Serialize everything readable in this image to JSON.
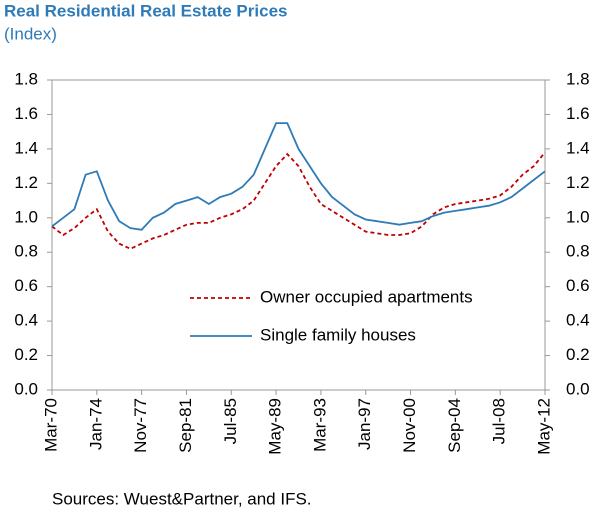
{
  "chart_data": {
    "type": "line",
    "title": "Real Residential Real Estate Prices",
    "subtitle": "(Index)",
    "note": "Sources: Wuest&Partner, and IFS.",
    "categories": [
      "Mar-70",
      null,
      null,
      null,
      "Jan-74",
      null,
      null,
      null,
      "Nov-77",
      null,
      null,
      null,
      "Sep-81",
      null,
      null,
      null,
      "Jul-85",
      null,
      null,
      null,
      "May-89",
      null,
      null,
      null,
      "Mar-93",
      null,
      null,
      null,
      "Jan-97",
      null,
      null,
      null,
      "Nov-00",
      null,
      null,
      null,
      "Sep-04",
      null,
      null,
      null,
      "Jul-08",
      null,
      null,
      null,
      "May-12"
    ],
    "series": [
      {
        "name": "Owner occupied apartments",
        "color": "#c00000",
        "line_style": "dashed",
        "values": [
          0.95,
          0.9,
          0.94,
          1.0,
          1.05,
          0.92,
          0.85,
          0.82,
          0.85,
          0.88,
          0.9,
          0.93,
          0.96,
          0.97,
          0.97,
          1.0,
          1.02,
          1.05,
          1.1,
          1.2,
          1.3,
          1.37,
          1.3,
          1.18,
          1.08,
          1.04,
          1.0,
          0.96,
          0.92,
          0.91,
          0.9,
          0.9,
          0.91,
          0.95,
          1.02,
          1.06,
          1.08,
          1.09,
          1.1,
          1.11,
          1.13,
          1.18,
          1.25,
          1.3,
          1.38
        ]
      },
      {
        "name": "Single family houses",
        "color": "#2e7bb8",
        "line_style": "solid",
        "values": [
          0.95,
          1.0,
          1.05,
          1.25,
          1.27,
          1.1,
          0.98,
          0.94,
          0.93,
          1.0,
          1.03,
          1.08,
          1.1,
          1.12,
          1.08,
          1.12,
          1.14,
          1.18,
          1.25,
          1.4,
          1.55,
          1.55,
          1.4,
          1.3,
          1.2,
          1.12,
          1.07,
          1.02,
          0.99,
          0.98,
          0.97,
          0.96,
          0.97,
          0.98,
          1.01,
          1.03,
          1.04,
          1.05,
          1.06,
          1.07,
          1.09,
          1.12,
          1.17,
          1.22,
          1.27
        ]
      }
    ],
    "ylim": [
      0,
      1.8
    ],
    "yticks": [
      {
        "value": 0,
        "label": "0.0"
      },
      0.2,
      0.4,
      0.6,
      0.8,
      {
        "value": 1,
        "label": "1.0"
      },
      1.2,
      1.4,
      1.6,
      1.8
    ],
    "y2lim": [
      0,
      1.8
    ],
    "y2ticks": [
      {
        "value": 0,
        "label": "0.0"
      },
      0.2,
      0.4,
      0.6,
      0.8,
      {
        "value": 1,
        "label": "1.0"
      },
      1.2,
      1.4,
      1.6,
      1.8
    ],
    "legend": "lower center"
  }
}
